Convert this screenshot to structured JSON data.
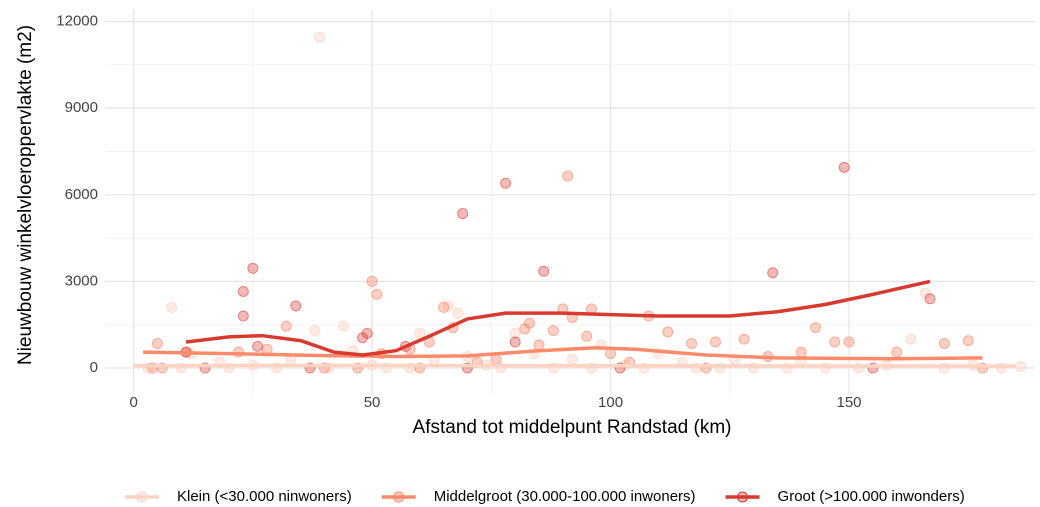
{
  "chart_data": {
    "type": "scatter",
    "xlabel": "Afstand tot middelpunt Randstad (km)",
    "ylabel": "Nieuwbouw winkelvloeroppervlakte (m2)",
    "xlim": [
      -6,
      189
    ],
    "ylim": [
      -900,
      12400
    ],
    "xticks": [
      0,
      50,
      100,
      150
    ],
    "yticks": [
      0,
      3000,
      6000,
      9000,
      12000
    ],
    "grid": true,
    "minor_grid": true,
    "legend": "bottom",
    "series": [
      {
        "name": "Klein (<30.000 ninwoners)",
        "color": "#fdd3c3",
        "opacity": 0.45,
        "x": [
          3,
          8,
          10,
          12,
          18,
          20,
          25,
          30,
          33,
          38,
          39,
          41,
          44,
          46,
          50,
          53,
          58,
          60,
          63,
          66,
          68,
          70,
          74,
          77,
          80,
          84,
          88,
          92,
          96,
          98,
          103,
          107,
          110,
          115,
          118,
          123,
          126,
          130,
          137,
          140,
          145,
          152,
          158,
          163,
          166,
          170,
          176,
          182,
          186
        ],
        "y": [
          0,
          2100,
          0,
          500,
          200,
          0,
          100,
          0,
          300,
          1300,
          11450,
          0,
          1450,
          600,
          100,
          0,
          0,
          1200,
          300,
          2150,
          1900,
          400,
          100,
          0,
          1200,
          500,
          0,
          300,
          0,
          800,
          100,
          0,
          500,
          200,
          0,
          0,
          300,
          0,
          0,
          200,
          0,
          0,
          100,
          1000,
          2600,
          0,
          100,
          0,
          50
        ],
        "trend_x": [
          0,
          50,
          100,
          150,
          185
        ],
        "trend_y": [
          80,
          90,
          80,
          70,
          70
        ]
      },
      {
        "name": "Middelgroot (30.000-100.000 inwoners)",
        "color": "#fb8a6a",
        "opacity": 0.4,
        "x": [
          5,
          4,
          11,
          22,
          28,
          32,
          40,
          47,
          50,
          51,
          52,
          58,
          62,
          65,
          67,
          72,
          76,
          82,
          83,
          85,
          88,
          90,
          91,
          92,
          95,
          96,
          100,
          104,
          108,
          112,
          117,
          122,
          128,
          133,
          140,
          143,
          147,
          150,
          160,
          170,
          175,
          178,
          6,
          60,
          120
        ],
        "y": [
          850,
          0,
          550,
          550,
          650,
          1450,
          0,
          0,
          3000,
          2550,
          500,
          650,
          900,
          2100,
          1400,
          200,
          300,
          1350,
          1550,
          800,
          1300,
          2050,
          6650,
          1750,
          1100,
          2050,
          500,
          200,
          1800,
          1250,
          850,
          900,
          1000,
          400,
          550,
          1400,
          900,
          900,
          550,
          850,
          950,
          0,
          0,
          0,
          0
        ],
        "trend_x": [
          2,
          20,
          40,
          55,
          70,
          85,
          97,
          105,
          120,
          135,
          160,
          178
        ],
        "trend_y": [
          550,
          500,
          430,
          400,
          420,
          600,
          700,
          650,
          450,
          350,
          320,
          350
        ]
      },
      {
        "name": "Groot (>100.000 inwonders)",
        "color": "#d93a2f",
        "opacity": 0.35,
        "x": [
          23,
          25,
          23,
          34,
          49,
          48,
          69,
          78,
          86,
          134,
          149,
          167,
          11,
          26,
          57,
          80,
          70,
          102,
          155,
          37,
          15
        ],
        "y": [
          2650,
          3450,
          1800,
          2150,
          1200,
          1050,
          5350,
          6400,
          3350,
          3300,
          6950,
          2400,
          550,
          750,
          750,
          900,
          0,
          0,
          0,
          0,
          0
        ],
        "trend_x": [
          11,
          20,
          27,
          35,
          42,
          48,
          55,
          62,
          70,
          78,
          90,
          100,
          110,
          125,
          135,
          145,
          155,
          167
        ],
        "trend_y": [
          900,
          1080,
          1120,
          950,
          550,
          450,
          600,
          1100,
          1700,
          1900,
          1900,
          1850,
          1800,
          1800,
          1950,
          2200,
          2550,
          3000
        ]
      }
    ]
  }
}
